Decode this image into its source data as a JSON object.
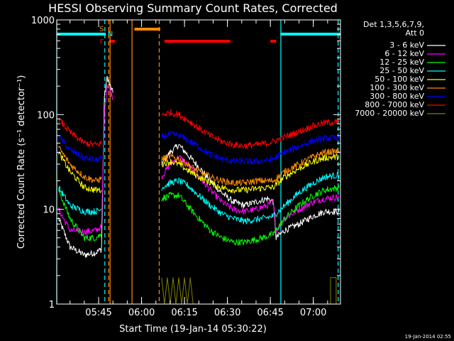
{
  "chart_data": {
    "type": "line",
    "title": "HESSI Observing Summary Count Rates, Corrected",
    "xlabel": "Start Time (19-Jan-14 05:30:22)",
    "ylabel": "Corrected Count Rate (s⁻¹ detector⁻¹)",
    "y_scale": "log",
    "ylim": [
      1,
      1000
    ],
    "xlim": [
      "05:30:22",
      "07:09:30"
    ],
    "x_ticks": [
      "05:45",
      "06:00",
      "06:15",
      "06:30",
      "06:45",
      "07:00"
    ],
    "y_ticks": [
      "1",
      "10",
      "100",
      "1000"
    ],
    "legend_header": [
      "Det 1,3,5,6,7,9,",
      "Att 0"
    ],
    "legend_position": "right",
    "footer": "19-Jan-2014 02:55",
    "markers": {
      "S": {
        "color": "#ff8c00"
      },
      "N": {
        "color": "#00ffff"
      },
      "F": {
        "color": "#ff0000"
      }
    },
    "bands": {
      "saa_bars": [
        [
          "05:30:22",
          "05:47:30"
        ],
        [
          "06:48:30",
          "07:09:30"
        ]
      ],
      "night_bars": [
        [
          "05:57:30",
          "06:06:30"
        ]
      ],
      "flare_bars": [
        [
          "05:48:40",
          "05:50:40"
        ],
        [
          "06:08:00",
          "06:31:00"
        ],
        [
          "06:45:00",
          "06:47:00"
        ]
      ],
      "cyan_solid": [
        "05:30:22",
        "06:48:40"
      ],
      "cyan_dashed": [
        "05:47:10",
        "07:08:40"
      ],
      "orange_solid": [
        "05:49:00",
        "05:56:40"
      ],
      "orange_dashed": [
        "05:48:30",
        "06:06:10"
      ]
    },
    "series": [
      {
        "name": "3 - 6 keV",
        "color": "#ffffff",
        "points": [
          [
            "05:31",
            8
          ],
          [
            "05:35",
            4
          ],
          [
            "05:40",
            3.3
          ],
          [
            "05:44",
            3.5
          ],
          [
            "05:46",
            3.8
          ],
          [
            "05:47",
            150
          ],
          [
            "05:48",
            250
          ],
          [
            "05:49",
            200
          ],
          [
            "05:50",
            170
          ],
          [
            "06:07",
            30
          ],
          [
            "06:10",
            40
          ],
          [
            "06:13",
            48
          ],
          [
            "06:16",
            38
          ],
          [
            "06:20",
            28
          ],
          [
            "06:24",
            20
          ],
          [
            "06:28",
            15
          ],
          [
            "06:32",
            12
          ],
          [
            "06:36",
            11
          ],
          [
            "06:40",
            12
          ],
          [
            "06:44",
            13
          ],
          [
            "06:46",
            12
          ],
          [
            "06:47",
            5
          ],
          [
            "06:50",
            6
          ],
          [
            "06:55",
            7
          ],
          [
            "07:00",
            8.5
          ],
          [
            "07:04",
            9.5
          ],
          [
            "07:09",
            9.5
          ]
        ]
      },
      {
        "name": "6 - 12 keV",
        "color": "#ff00ff",
        "points": [
          [
            "05:31",
            10
          ],
          [
            "05:35",
            6
          ],
          [
            "05:40",
            5.8
          ],
          [
            "05:44",
            6
          ],
          [
            "05:46",
            6.5
          ],
          [
            "05:47",
            100
          ],
          [
            "05:48",
            210
          ],
          [
            "05:49",
            180
          ],
          [
            "05:50",
            150
          ],
          [
            "06:07",
            22
          ],
          [
            "06:10",
            30
          ],
          [
            "06:13",
            36
          ],
          [
            "06:16",
            30
          ],
          [
            "06:20",
            22
          ],
          [
            "06:24",
            16
          ],
          [
            "06:28",
            12
          ],
          [
            "06:32",
            10
          ],
          [
            "06:36",
            9.5
          ],
          [
            "06:40",
            10
          ],
          [
            "06:44",
            11
          ],
          [
            "06:46",
            12
          ],
          [
            "06:47",
            6
          ],
          [
            "06:50",
            8
          ],
          [
            "06:55",
            10
          ],
          [
            "07:00",
            12
          ],
          [
            "07:04",
            13
          ],
          [
            "07:09",
            13.5
          ]
        ]
      },
      {
        "name": "12 - 25 keV",
        "color": "#00ff00",
        "points": [
          [
            "05:31",
            16
          ],
          [
            "05:35",
            8
          ],
          [
            "05:40",
            5
          ],
          [
            "05:44",
            5
          ],
          [
            "05:46",
            5.5
          ],
          [
            "06:07",
            13
          ],
          [
            "06:10",
            14
          ],
          [
            "06:13",
            14
          ],
          [
            "06:16",
            11
          ],
          [
            "06:20",
            8
          ],
          [
            "06:24",
            6
          ],
          [
            "06:28",
            5
          ],
          [
            "06:32",
            4.5
          ],
          [
            "06:36",
            4.5
          ],
          [
            "06:40",
            4.8
          ],
          [
            "06:44",
            5.2
          ],
          [
            "06:46",
            5.5
          ],
          [
            "06:50",
            8
          ],
          [
            "06:55",
            11
          ],
          [
            "07:00",
            14
          ],
          [
            "07:04",
            16
          ],
          [
            "07:09",
            17
          ]
        ]
      },
      {
        "name": "25 - 50 keV",
        "color": "#00ffff",
        "points": [
          [
            "05:31",
            17
          ],
          [
            "05:35",
            11
          ],
          [
            "05:40",
            9.5
          ],
          [
            "05:44",
            9.5
          ],
          [
            "05:46",
            10
          ],
          [
            "06:07",
            17
          ],
          [
            "06:10",
            19
          ],
          [
            "06:13",
            20
          ],
          [
            "06:16",
            18
          ],
          [
            "06:20",
            14
          ],
          [
            "06:24",
            11
          ],
          [
            "06:28",
            9
          ],
          [
            "06:32",
            8
          ],
          [
            "06:36",
            7.5
          ],
          [
            "06:40",
            7.8
          ],
          [
            "06:44",
            8.2
          ],
          [
            "06:46",
            8.5
          ],
          [
            "06:50",
            11
          ],
          [
            "06:55",
            15
          ],
          [
            "07:00",
            19
          ],
          [
            "07:04",
            22
          ],
          [
            "07:09",
            23
          ]
        ]
      },
      {
        "name": "50 - 100 keV",
        "color": "#ffff00",
        "points": [
          [
            "05:31",
            40
          ],
          [
            "05:35",
            25
          ],
          [
            "05:40",
            17
          ],
          [
            "05:44",
            16
          ],
          [
            "05:46",
            16
          ],
          [
            "06:07",
            30
          ],
          [
            "06:10",
            32
          ],
          [
            "06:13",
            30
          ],
          [
            "06:16",
            26
          ],
          [
            "06:20",
            22
          ],
          [
            "06:24",
            19
          ],
          [
            "06:28",
            17
          ],
          [
            "06:32",
            16
          ],
          [
            "06:36",
            16
          ],
          [
            "06:40",
            16.5
          ],
          [
            "06:44",
            17
          ],
          [
            "06:46",
            17
          ],
          [
            "06:50",
            22
          ],
          [
            "06:55",
            27
          ],
          [
            "07:00",
            32
          ],
          [
            "07:04",
            35
          ],
          [
            "07:09",
            36
          ]
        ]
      },
      {
        "name": "100 - 300 keV",
        "color": "#ff8c00",
        "points": [
          [
            "05:31",
            45
          ],
          [
            "05:35",
            30
          ],
          [
            "05:40",
            22
          ],
          [
            "05:44",
            20
          ],
          [
            "05:46",
            21
          ],
          [
            "06:07",
            34
          ],
          [
            "06:10",
            36
          ],
          [
            "06:13",
            34
          ],
          [
            "06:16",
            30
          ],
          [
            "06:20",
            25
          ],
          [
            "06:24",
            22
          ],
          [
            "06:28",
            20
          ],
          [
            "06:32",
            19
          ],
          [
            "06:36",
            19
          ],
          [
            "06:40",
            20
          ],
          [
            "06:44",
            20
          ],
          [
            "06:46",
            20
          ],
          [
            "06:50",
            25
          ],
          [
            "06:55",
            30
          ],
          [
            "07:00",
            36
          ],
          [
            "07:04",
            40
          ],
          [
            "07:09",
            41
          ]
        ]
      },
      {
        "name": "300 - 800 keV",
        "color": "#0000ff",
        "points": [
          [
            "05:31",
            60
          ],
          [
            "05:35",
            42
          ],
          [
            "05:40",
            35
          ],
          [
            "05:44",
            33
          ],
          [
            "05:46",
            34
          ],
          [
            "06:07",
            58
          ],
          [
            "06:10",
            62
          ],
          [
            "06:13",
            60
          ],
          [
            "06:16",
            54
          ],
          [
            "06:20",
            46
          ],
          [
            "06:24",
            38
          ],
          [
            "06:28",
            34
          ],
          [
            "06:32",
            32
          ],
          [
            "06:36",
            32
          ],
          [
            "06:40",
            32
          ],
          [
            "06:44",
            33
          ],
          [
            "06:46",
            34
          ],
          [
            "06:50",
            40
          ],
          [
            "06:55",
            46
          ],
          [
            "07:00",
            53
          ],
          [
            "07:04",
            56
          ],
          [
            "07:09",
            57
          ]
        ]
      },
      {
        "name": "800 - 7000 keV",
        "color": "#ff0000",
        "points": [
          [
            "05:31",
            90
          ],
          [
            "05:35",
            65
          ],
          [
            "05:40",
            50
          ],
          [
            "05:44",
            48
          ],
          [
            "05:46",
            50
          ],
          [
            "06:07",
            100
          ],
          [
            "06:10",
            105
          ],
          [
            "06:13",
            100
          ],
          [
            "06:16",
            88
          ],
          [
            "06:20",
            72
          ],
          [
            "06:24",
            60
          ],
          [
            "06:28",
            52
          ],
          [
            "06:32",
            48
          ],
          [
            "06:36",
            47
          ],
          [
            "06:40",
            48
          ],
          [
            "06:44",
            50
          ],
          [
            "06:46",
            52
          ],
          [
            "06:50",
            58
          ],
          [
            "06:55",
            66
          ],
          [
            "07:00",
            76
          ],
          [
            "07:04",
            82
          ],
          [
            "07:09",
            84
          ]
        ]
      },
      {
        "name": "7000 - 20000 keV",
        "color": "#808000",
        "points": [
          [
            "06:07",
            1.9
          ],
          [
            "06:08",
            1.0
          ],
          [
            "06:09",
            1.9
          ],
          [
            "06:10",
            1.0
          ],
          [
            "06:11",
            1.9
          ],
          [
            "06:12",
            1.0
          ],
          [
            "06:13",
            1.9
          ],
          [
            "06:14",
            1.0
          ],
          [
            "06:15",
            1.9
          ],
          [
            "06:16",
            1.0
          ],
          [
            "06:17",
            1.9
          ],
          [
            "06:18",
            1.0
          ],
          [
            "07:06",
            1.0
          ],
          [
            "07:06",
            1.9
          ],
          [
            "07:08",
            1.9
          ],
          [
            "07:08",
            1.0
          ]
        ]
      }
    ]
  }
}
